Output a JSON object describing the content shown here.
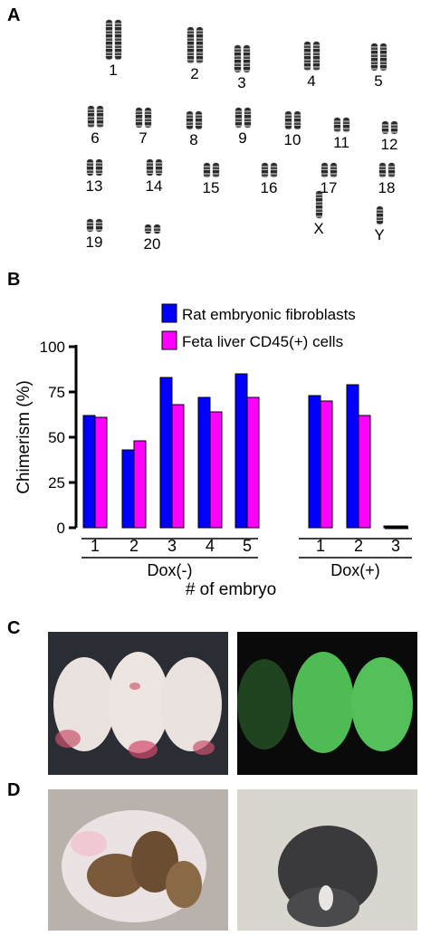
{
  "panels": {
    "a": "A",
    "b": "B",
    "c": "C",
    "d": "D"
  },
  "karyotype": {
    "chromosomes": [
      "1",
      "2",
      "3",
      "4",
      "5",
      "6",
      "7",
      "8",
      "9",
      "10",
      "11",
      "12",
      "13",
      "14",
      "15",
      "16",
      "17",
      "18",
      "19",
      "20",
      "X",
      "Y"
    ]
  },
  "chart_data": {
    "type": "bar",
    "ylabel": "Chimerism (%)",
    "xlabel": "# of embryo",
    "ylim": [
      0,
      100
    ],
    "yticks": [
      0,
      25,
      50,
      75,
      100
    ],
    "groups": [
      {
        "label": "Dox(-)",
        "categories": [
          "1",
          "2",
          "3",
          "4",
          "5"
        ]
      },
      {
        "label": "Dox(+)",
        "categories": [
          "1",
          "2",
          "3"
        ]
      }
    ],
    "categories": [
      "1",
      "2",
      "3",
      "4",
      "5",
      "1",
      "2",
      "3"
    ],
    "series": [
      {
        "name": "Rat embryonic fibroblasts",
        "color": "#0000ff",
        "values": [
          62,
          43,
          83,
          72,
          85,
          73,
          79,
          1
        ]
      },
      {
        "name": "Feta liver CD45(+) cells",
        "color": "#ff00ff",
        "values": [
          61,
          48,
          68,
          64,
          72,
          70,
          62,
          1
        ]
      }
    ],
    "legend_position": "top-right"
  }
}
